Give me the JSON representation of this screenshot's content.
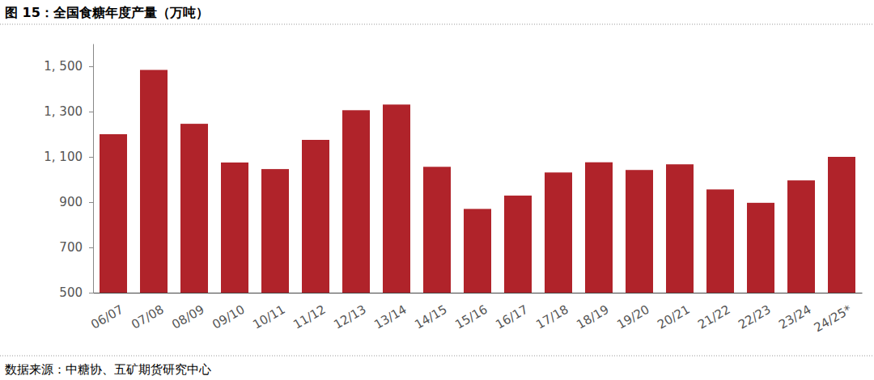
{
  "chart_data": {
    "type": "bar",
    "title": "图 15：全国食糖年度产量（万吨）",
    "source": "数据来源：中糖协、五矿期货研究中心",
    "categories": [
      "06/07",
      "07/08",
      "08/09",
      "09/10",
      "10/11",
      "11/12",
      "12/13",
      "13/14",
      "14/15",
      "15/16",
      "16/17",
      "17/18",
      "18/19",
      "19/20",
      "20/21",
      "21/22",
      "22/23",
      "23/24",
      "24/25*"
    ],
    "values": [
      1200,
      1484,
      1246,
      1075,
      1046,
      1175,
      1306,
      1331,
      1056,
      870,
      929,
      1031,
      1076,
      1042,
      1067,
      956,
      897,
      996,
      1100
    ],
    "color": "#b0232a",
    "ylim": [
      500,
      1600
    ],
    "yticks": [
      500,
      700,
      900,
      {
        "value": 1100,
        "label": "1, 100"
      },
      {
        "value": 1300,
        "label": "1, 300"
      },
      {
        "value": 1500,
        "label": "1, 500"
      }
    ],
    "grid": false
  }
}
